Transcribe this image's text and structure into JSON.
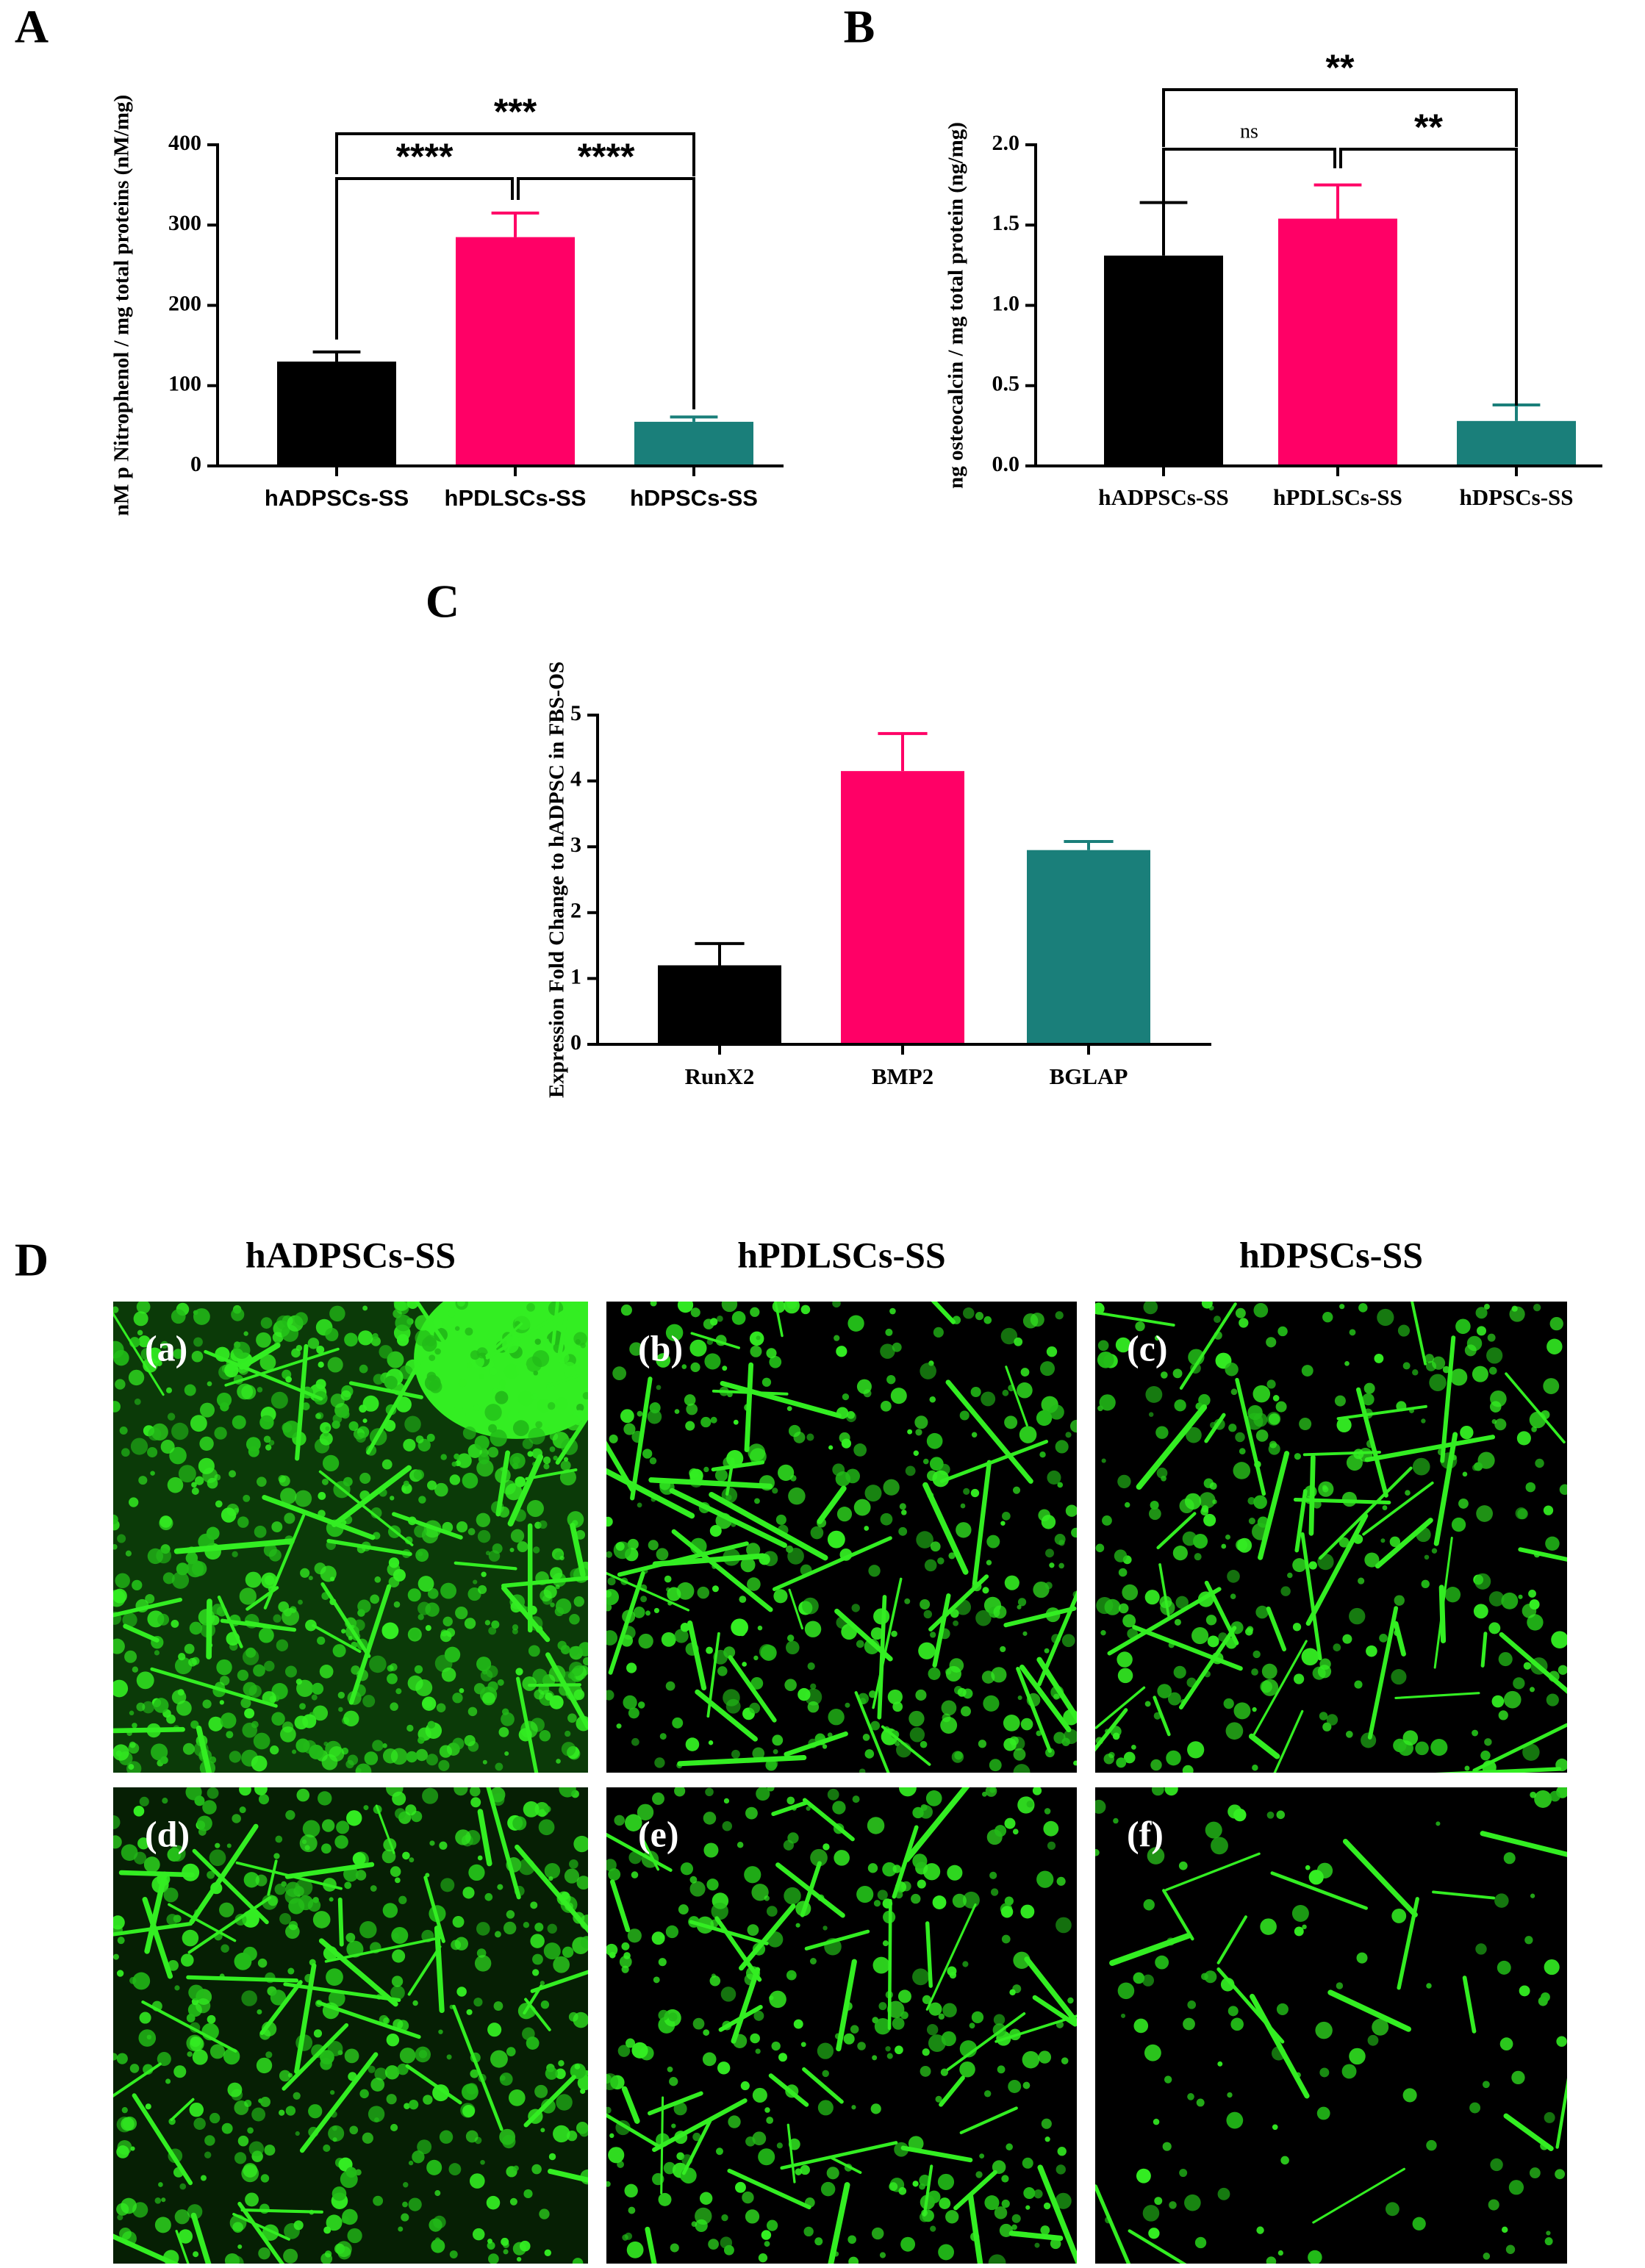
{
  "chart_data": [
    {
      "type": "bar",
      "label": "A",
      "y_label": "nM p Nitrophenol / mg total proteins (nM/mg)",
      "categories": [
        "hADPSCs-SS",
        "hPDLSCs-SS",
        "hDPSCs-SS"
      ],
      "values": [
        130,
        285,
        55
      ],
      "errors": [
        12,
        30,
        6
      ],
      "colors": [
        "#000000",
        "#ff0066",
        "#1a7f7a"
      ],
      "ylim": [
        0,
        400
      ],
      "yticks": [
        0,
        100,
        200,
        300,
        400
      ],
      "annotations": [
        "***",
        "****",
        "****"
      ]
    },
    {
      "type": "bar",
      "label": "B",
      "y_label": "ng osteocalcin / mg total protein (ng/mg)",
      "categories": [
        "hADPSCs-SS",
        "hPDLSCs-SS",
        "hDPSCs-SS"
      ],
      "values": [
        1.31,
        1.54,
        0.28
      ],
      "errors": [
        0.33,
        0.21,
        0.1
      ],
      "colors": [
        "#000000",
        "#ff0066",
        "#1a7f7a"
      ],
      "ylim": [
        0,
        2
      ],
      "yticks": [
        {
          "value": 0,
          "label": "0.0"
        },
        0.5,
        {
          "value": 1,
          "label": "1.0"
        },
        1.5,
        {
          "value": 2,
          "label": "2.0"
        }
      ],
      "annotations": [
        "**",
        "ns",
        "**"
      ]
    },
    {
      "type": "bar",
      "label": "C",
      "y_label": "Expression Fold Change to hADPSC in FBS-OS",
      "categories": [
        "RunX2",
        "BMP2",
        "BGLAP"
      ],
      "values": [
        1.2,
        4.15,
        2.95
      ],
      "errors": [
        0.33,
        0.57,
        0.13
      ],
      "colors": [
        "#000000",
        "#ff0066",
        "#1a7f7a"
      ],
      "ylim": [
        0,
        5
      ],
      "yticks": [
        0,
        1,
        2,
        3,
        4,
        5
      ]
    }
  ],
  "panel_d": {
    "label": "D",
    "columns": [
      "hADPSCs-SS",
      "hPDLSCs-SS",
      "hDPSCs-SS"
    ],
    "images": [
      "(a)",
      "(b)",
      "(c)",
      "(d)",
      "(e)",
      "(f)"
    ]
  }
}
